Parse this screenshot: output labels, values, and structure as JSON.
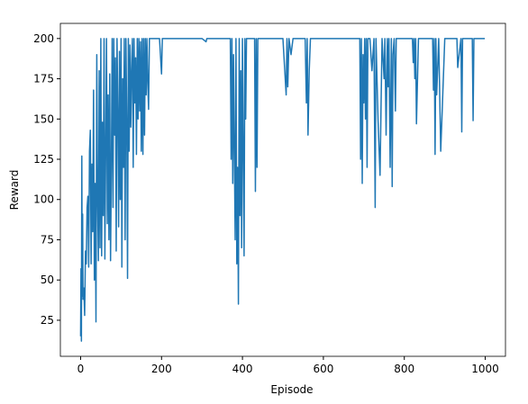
{
  "chart_data": {
    "type": "line",
    "x_label": "Episode",
    "y_label": "Reward",
    "color": "#1f77b4",
    "x": [
      0,
      1,
      2,
      3,
      4,
      5,
      6,
      8,
      10,
      12,
      14,
      16,
      18,
      20,
      22,
      24,
      26,
      28,
      30,
      32,
      34,
      36,
      38,
      40,
      42,
      44,
      46,
      48,
      50,
      52,
      54,
      56,
      58,
      60,
      62,
      64,
      66,
      68,
      70,
      72,
      74,
      76,
      78,
      80,
      82,
      84,
      86,
      88,
      90,
      92,
      94,
      96,
      98,
      100,
      102,
      104,
      106,
      108,
      110,
      112,
      114,
      116,
      118,
      120,
      122,
      124,
      126,
      128,
      130,
      132,
      134,
      136,
      138,
      140,
      142,
      144,
      146,
      148,
      150,
      152,
      154,
      156,
      158,
      160,
      162,
      164,
      166,
      168,
      170,
      175,
      180,
      185,
      190,
      195,
      200,
      202,
      204,
      210,
      250,
      300,
      310,
      312,
      320,
      370,
      372,
      374,
      376,
      378,
      380,
      382,
      384,
      386,
      388,
      390,
      392,
      394,
      396,
      398,
      400,
      402,
      404,
      406,
      408,
      410,
      420,
      425,
      430,
      432,
      434,
      436,
      438,
      440,
      442,
      445,
      450,
      500,
      508,
      510,
      512,
      515,
      520,
      525,
      555,
      558,
      560,
      562,
      565,
      568,
      570,
      575,
      600,
      690,
      692,
      694,
      696,
      698,
      700,
      702,
      704,
      706,
      708,
      710,
      715,
      720,
      725,
      728,
      730,
      735,
      740,
      745,
      750,
      752,
      755,
      758,
      760,
      762,
      765,
      768,
      770,
      772,
      775,
      778,
      780,
      785,
      790,
      800,
      820,
      822,
      824,
      826,
      828,
      830,
      835,
      870,
      872,
      874,
      876,
      878,
      880,
      885,
      890,
      900,
      930,
      932,
      940,
      942,
      944,
      950,
      968,
      970,
      972,
      999
    ],
    "values": [
      15,
      57,
      12,
      127,
      40,
      91,
      38,
      45,
      28,
      68,
      60,
      95,
      102,
      58,
      130,
      143,
      60,
      122,
      80,
      168,
      50,
      110,
      24,
      190,
      100,
      62,
      180,
      70,
      200,
      65,
      148,
      90,
      200,
      63,
      130,
      200,
      85,
      165,
      75,
      178,
      62,
      120,
      200,
      95,
      200,
      140,
      188,
      68,
      200,
      155,
      83,
      192,
      100,
      200,
      58,
      175,
      120,
      200,
      75,
      200,
      150,
      51,
      200,
      130,
      196,
      145,
      180,
      200,
      120,
      200,
      160,
      188,
      128,
      200,
      150,
      200,
      155,
      198,
      130,
      200,
      128,
      200,
      140,
      200,
      165,
      200,
      172,
      156,
      200,
      200,
      200,
      200,
      200,
      200,
      178,
      200,
      200,
      200,
      200,
      200,
      198,
      200,
      200,
      200,
      125,
      200,
      110,
      190,
      130,
      75,
      200,
      60,
      120,
      35,
      200,
      90,
      180,
      70,
      200,
      130,
      65,
      200,
      150,
      200,
      200,
      200,
      200,
      105,
      200,
      120,
      200,
      200,
      200,
      200,
      200,
      200,
      165,
      200,
      170,
      200,
      190,
      200,
      200,
      160,
      200,
      140,
      180,
      200,
      200,
      200,
      200,
      200,
      125,
      200,
      110,
      190,
      160,
      200,
      150,
      200,
      120,
      200,
      200,
      180,
      200,
      95,
      200,
      150,
      115,
      200,
      175,
      200,
      140,
      200,
      170,
      200,
      120,
      200,
      108,
      190,
      200,
      155,
      200,
      200,
      200,
      200,
      200,
      185,
      200,
      175,
      200,
      147,
      200,
      200,
      168,
      200,
      128,
      200,
      165,
      200,
      130,
      200,
      200,
      182,
      200,
      142,
      200,
      200,
      200,
      149,
      200,
      200
    ],
    "xlim": [
      -50,
      1050
    ],
    "ylim": [
      2.6,
      209.4
    ],
    "xticks": [
      0,
      200,
      400,
      600,
      800,
      1000
    ],
    "yticks": [
      25,
      50,
      75,
      100,
      125,
      150,
      175,
      200
    ]
  }
}
